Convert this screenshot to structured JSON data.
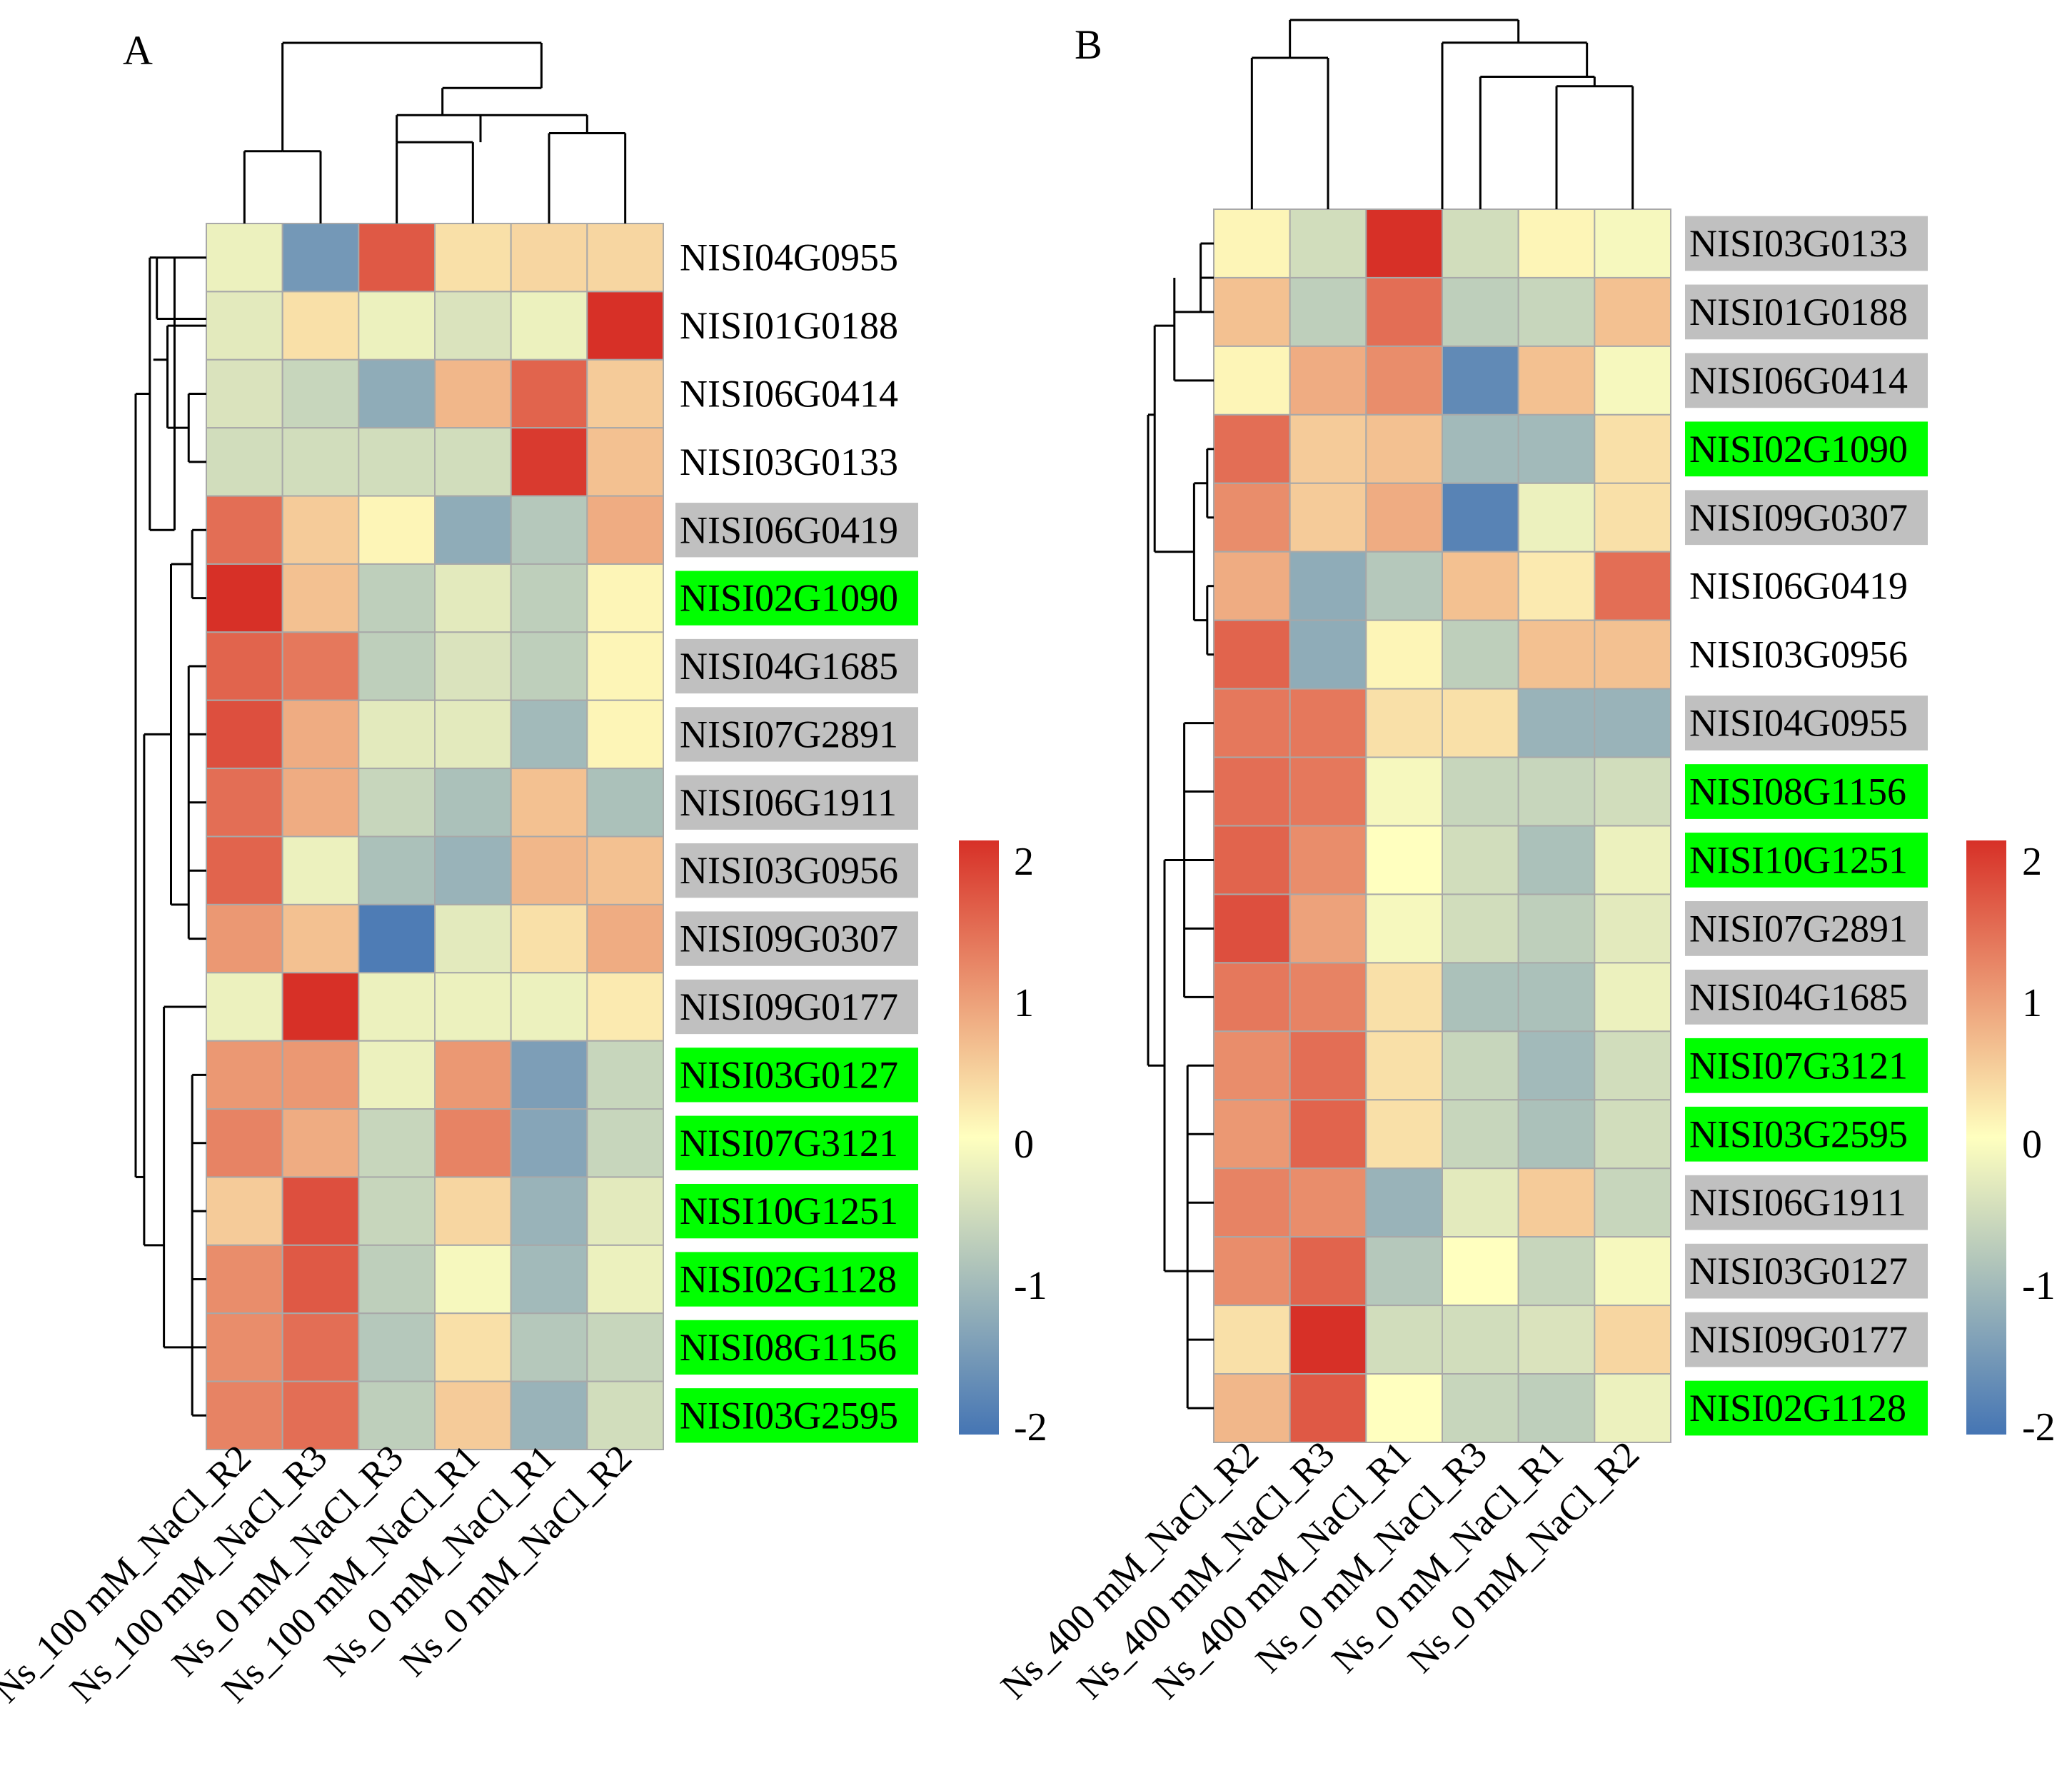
{
  "chart_data": [
    {
      "type": "heatmap",
      "panel_label": "A",
      "columns": [
        "Ns_100 mM_NaCl_R2",
        "Ns_100 mM_NaCl_R3",
        "Ns_0 mM_NaCl_R3",
        "Ns_100 mM_NaCl_R1",
        "Ns_0 mM_NaCl_R1",
        "Ns_0 mM_NaCl_R2"
      ],
      "rows": [
        {
          "gene": "NISI04G0955",
          "highlight": "none",
          "values": [
            -0.2,
            -1.5,
            1.6,
            0.3,
            0.4,
            0.4
          ]
        },
        {
          "gene": "NISI01G0188",
          "highlight": "none",
          "values": [
            -0.3,
            0.3,
            -0.2,
            -0.4,
            -0.2,
            2.0
          ]
        },
        {
          "gene": "NISI06G0414",
          "highlight": "none",
          "values": [
            -0.4,
            -0.6,
            -1.2,
            0.7,
            1.5,
            0.5
          ]
        },
        {
          "gene": "NISI03G0133",
          "highlight": "none",
          "values": [
            -0.5,
            -0.5,
            -0.5,
            -0.5,
            1.9,
            0.6
          ]
        },
        {
          "gene": "NISI06G0419",
          "highlight": "gray",
          "values": [
            1.4,
            0.5,
            0.1,
            -1.2,
            -0.8,
            0.8
          ]
        },
        {
          "gene": "NISI02G1090",
          "highlight": "green",
          "values": [
            2.0,
            0.6,
            -0.7,
            -0.3,
            -0.7,
            0.1
          ]
        },
        {
          "gene": "NISI04G1685",
          "highlight": "gray",
          "values": [
            1.5,
            1.3,
            -0.7,
            -0.4,
            -0.7,
            0.1
          ]
        },
        {
          "gene": "NISI07G2891",
          "highlight": "gray",
          "values": [
            1.7,
            0.8,
            -0.3,
            -0.3,
            -1.0,
            0.1
          ]
        },
        {
          "gene": "NISI06G1911",
          "highlight": "gray",
          "values": [
            1.4,
            0.8,
            -0.6,
            -0.9,
            0.6,
            -0.9
          ]
        },
        {
          "gene": "NISI03G0956",
          "highlight": "gray",
          "values": [
            1.5,
            -0.2,
            -0.9,
            -1.1,
            0.7,
            0.6
          ]
        },
        {
          "gene": "NISI09G0307",
          "highlight": "gray",
          "values": [
            1.0,
            0.6,
            -1.9,
            -0.3,
            0.3,
            0.8
          ]
        },
        {
          "gene": "NISI09G0177",
          "highlight": "gray",
          "values": [
            -0.2,
            2.1,
            -0.2,
            -0.2,
            -0.2,
            0.2
          ]
        },
        {
          "gene": "NISI03G0127",
          "highlight": "green",
          "values": [
            1.0,
            1.0,
            -0.2,
            1.0,
            -1.4,
            -0.6
          ]
        },
        {
          "gene": "NISI07G3121",
          "highlight": "green",
          "values": [
            1.2,
            0.8,
            -0.6,
            1.2,
            -1.3,
            -0.6
          ]
        },
        {
          "gene": "NISI10G1251",
          "highlight": "green",
          "values": [
            0.5,
            1.7,
            -0.6,
            0.4,
            -1.1,
            -0.3
          ]
        },
        {
          "gene": "NISI02G1128",
          "highlight": "green",
          "values": [
            1.1,
            1.6,
            -0.7,
            -0.1,
            -1.0,
            -0.2
          ]
        },
        {
          "gene": "NISI08G1156",
          "highlight": "green",
          "values": [
            1.1,
            1.4,
            -0.8,
            0.3,
            -0.8,
            -0.6
          ]
        },
        {
          "gene": "NISI03G2595",
          "highlight": "green",
          "values": [
            1.2,
            1.4,
            -0.7,
            0.5,
            -1.1,
            -0.5
          ]
        }
      ],
      "colorbar": {
        "min": -2,
        "max": 2,
        "ticks": [
          "2",
          "1",
          "0",
          "-1",
          "-2"
        ],
        "colors": [
          "#4575b4",
          "#ffffbf",
          "#d73027"
        ]
      }
    },
    {
      "type": "heatmap",
      "panel_label": "B",
      "columns": [
        "Ns_400 mM_NaCl_R2",
        "Ns_400 mM_NaCl_R3",
        "Ns_400 mM_NaCl_R1",
        "Ns_0 mM_NaCl_R3",
        "Ns_0 mM_NaCl_R1",
        "Ns_0 mM_NaCl_R2"
      ],
      "rows": [
        {
          "gene": "NISI03G0133",
          "highlight": "gray",
          "values": [
            0.1,
            -0.5,
            2.1,
            -0.5,
            0.1,
            -0.1
          ]
        },
        {
          "gene": "NISI01G0188",
          "highlight": "gray",
          "values": [
            0.6,
            -0.7,
            1.4,
            -0.7,
            -0.6,
            0.6
          ]
        },
        {
          "gene": "NISI06G0414",
          "highlight": "gray",
          "values": [
            0.1,
            0.8,
            1.1,
            -1.7,
            0.6,
            -0.1
          ]
        },
        {
          "gene": "NISI02G1090",
          "highlight": "green",
          "values": [
            1.4,
            0.5,
            0.6,
            -1.0,
            -1.0,
            0.3
          ]
        },
        {
          "gene": "NISI09G0307",
          "highlight": "gray",
          "values": [
            1.1,
            0.5,
            0.8,
            -1.8,
            -0.2,
            0.3
          ]
        },
        {
          "gene": "NISI06G0419",
          "highlight": "none",
          "values": [
            0.8,
            -1.2,
            -0.8,
            0.6,
            0.2,
            1.4
          ]
        },
        {
          "gene": "NISI03G0956",
          "highlight": "none",
          "values": [
            1.5,
            -1.2,
            0.1,
            -0.7,
            0.6,
            0.6
          ]
        },
        {
          "gene": "NISI04G0955",
          "highlight": "gray",
          "values": [
            1.3,
            1.3,
            0.3,
            0.3,
            -1.1,
            -1.1
          ]
        },
        {
          "gene": "NISI08G1156",
          "highlight": "green",
          "values": [
            1.4,
            1.3,
            -0.1,
            -0.6,
            -0.6,
            -0.5
          ]
        },
        {
          "gene": "NISI10G1251",
          "highlight": "green",
          "values": [
            1.5,
            1.1,
            0.0,
            -0.5,
            -0.9,
            -0.2
          ]
        },
        {
          "gene": "NISI07G2891",
          "highlight": "gray",
          "values": [
            1.7,
            0.9,
            -0.1,
            -0.5,
            -0.7,
            -0.3
          ]
        },
        {
          "gene": "NISI04G1685",
          "highlight": "gray",
          "values": [
            1.3,
            1.2,
            0.3,
            -0.9,
            -0.9,
            -0.2
          ]
        },
        {
          "gene": "NISI07G3121",
          "highlight": "green",
          "values": [
            1.1,
            1.4,
            0.3,
            -0.6,
            -1.0,
            -0.5
          ]
        },
        {
          "gene": "NISI03G2595",
          "highlight": "green",
          "values": [
            1.0,
            1.5,
            0.3,
            -0.6,
            -0.9,
            -0.5
          ]
        },
        {
          "gene": "NISI06G1911",
          "highlight": "gray",
          "values": [
            1.2,
            1.1,
            -1.1,
            -0.3,
            0.5,
            -0.6
          ]
        },
        {
          "gene": "NISI03G0127",
          "highlight": "gray",
          "values": [
            1.1,
            1.5,
            -0.8,
            0.0,
            -0.6,
            -0.1
          ]
        },
        {
          "gene": "NISI09G0177",
          "highlight": "gray",
          "values": [
            0.3,
            2.0,
            -0.5,
            -0.5,
            -0.4,
            0.4
          ]
        },
        {
          "gene": "NISI02G1128",
          "highlight": "green",
          "values": [
            0.7,
            1.6,
            0.0,
            -0.6,
            -0.7,
            -0.2
          ]
        }
      ],
      "colorbar": {
        "min": -2,
        "max": 2,
        "ticks": [
          "2",
          "1",
          "0",
          "-1",
          "-2"
        ],
        "colors": [
          "#4575b4",
          "#ffffbf",
          "#d73027"
        ]
      }
    }
  ],
  "highlight_colors": {
    "green": "#00ff00",
    "gray": "#c0c0c0",
    "none": "#ffffff"
  },
  "icons": {
    "dendrogram": "dendrogram-icon"
  }
}
